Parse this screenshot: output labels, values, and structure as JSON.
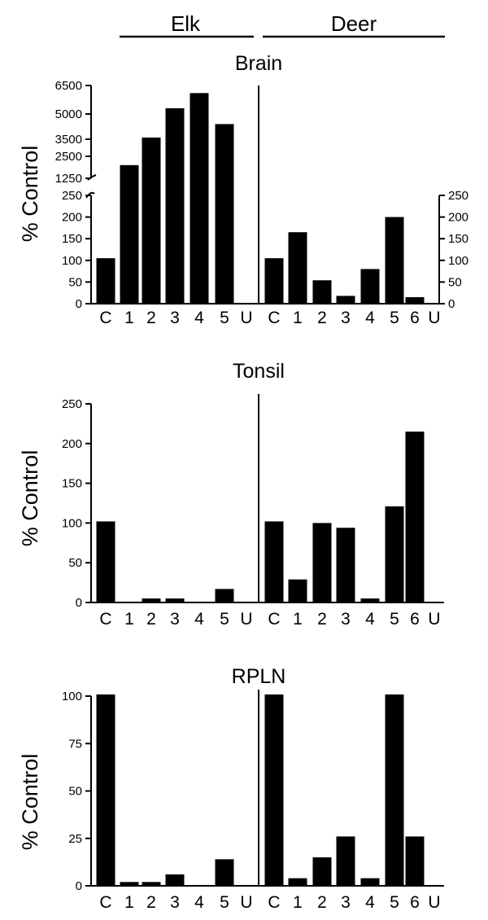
{
  "header": {
    "groups": [
      {
        "name": "Elk"
      },
      {
        "name": "Deer"
      }
    ]
  },
  "colors": {
    "bar": "#000000",
    "axis": "#000000",
    "background": "#ffffff"
  },
  "chart_data": [
    {
      "type": "bar",
      "title": "Brain",
      "ylabel": "% Control",
      "axis_break": true,
      "lower_range": [
        0,
        250
      ],
      "upper_range": [
        1250,
        6500
      ],
      "lower_ticks": [
        "0",
        "50",
        "100",
        "150",
        "200",
        "250"
      ],
      "upper_ticks": [
        "1250",
        "2500",
        "3500",
        "5000",
        "6500"
      ],
      "right_axis_ticks": [
        "0",
        "50",
        "100",
        "150",
        "200",
        "250"
      ],
      "groups": [
        {
          "name": "Elk",
          "categories": [
            "C",
            "1",
            "2",
            "3",
            "4",
            "5",
            "U"
          ],
          "values": [
            105,
            2000,
            3600,
            5300,
            6100,
            4400,
            0
          ]
        },
        {
          "name": "Deer",
          "categories": [
            "C",
            "1",
            "2",
            "3",
            "4",
            "5",
            "6",
            "U"
          ],
          "values": [
            105,
            165,
            54,
            18,
            80,
            200,
            15,
            0
          ]
        }
      ]
    },
    {
      "type": "bar",
      "title": "Tonsil",
      "ylabel": "% Control",
      "ylim": [
        0,
        250
      ],
      "yticks": [
        "0",
        "50",
        "100",
        "150",
        "200",
        "250"
      ],
      "groups": [
        {
          "name": "Elk",
          "categories": [
            "C",
            "1",
            "2",
            "3",
            "4",
            "5",
            "U"
          ],
          "values": [
            102,
            0,
            5,
            5,
            0,
            17,
            0
          ]
        },
        {
          "name": "Deer",
          "categories": [
            "C",
            "1",
            "2",
            "3",
            "4",
            "5",
            "6",
            "U"
          ],
          "values": [
            102,
            29,
            100,
            94,
            5,
            121,
            215,
            0
          ]
        }
      ]
    },
    {
      "type": "bar",
      "title": "RPLN",
      "ylabel": "% Control",
      "ylim": [
        0,
        100
      ],
      "yticks": [
        "0",
        "25",
        "50",
        "75",
        "100"
      ],
      "groups": [
        {
          "name": "Elk",
          "categories": [
            "C",
            "1",
            "2",
            "3",
            "4",
            "5",
            "U"
          ],
          "values": [
            101,
            2,
            2,
            6,
            0,
            14,
            0
          ]
        },
        {
          "name": "Deer",
          "categories": [
            "C",
            "1",
            "2",
            "3",
            "4",
            "5",
            "6",
            "U"
          ],
          "values": [
            101,
            4,
            15,
            26,
            4,
            101,
            26,
            0
          ]
        }
      ]
    }
  ]
}
